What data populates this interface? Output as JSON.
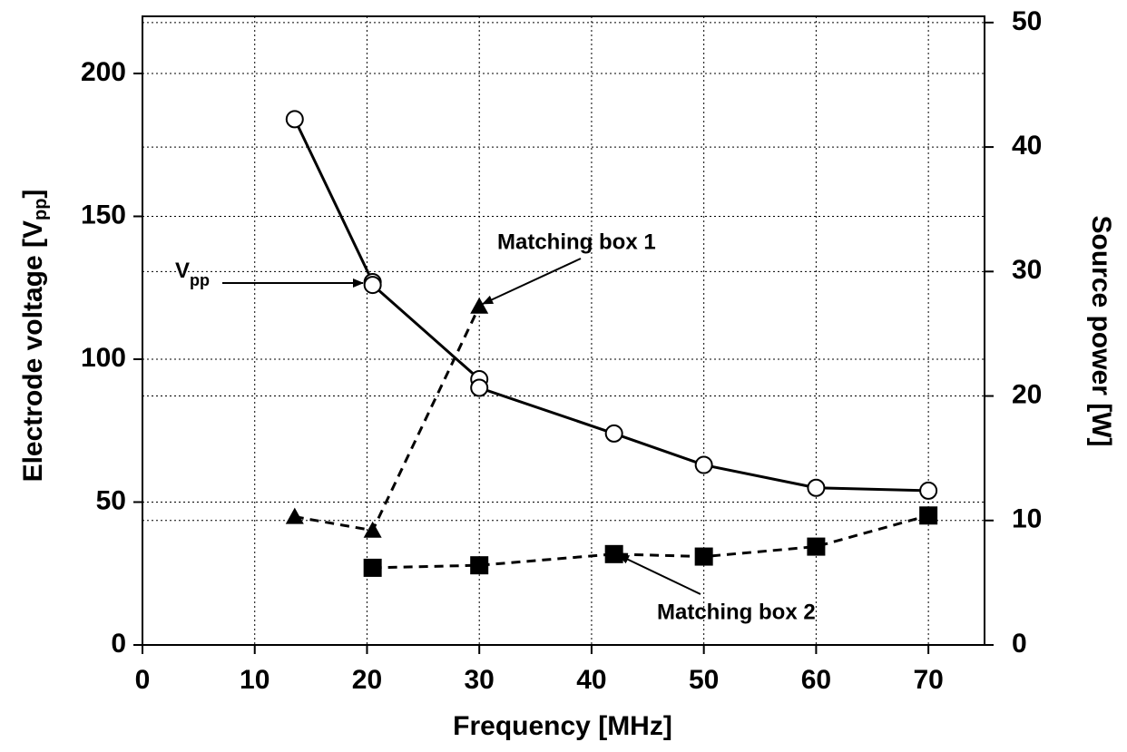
{
  "chart_data": {
    "type": "line",
    "xlabel": "Frequency  [MHz]",
    "ylabel": [
      "Electrode voltage [V",
      "pp",
      "]"
    ],
    "y2label": "Source power [W]",
    "xlim": [
      0,
      75
    ],
    "xticks": [
      0,
      10,
      20,
      30,
      40,
      50,
      60,
      70
    ],
    "ylim": [
      0,
      220
    ],
    "yticks": [
      0,
      50,
      100,
      150,
      200
    ],
    "y2lim": [
      0,
      50.5
    ],
    "y2ticks": [
      0,
      10,
      20,
      30,
      40,
      50
    ],
    "grid": true,
    "series": [
      {
        "name": "V",
        "name_sub": "pp",
        "marker": "open-circle",
        "dash": false,
        "color": "#000",
        "x": [
          13.56,
          20.5,
          20.5,
          30,
          30,
          42,
          50,
          60,
          70
        ],
        "values": [
          184,
          127,
          126,
          93,
          90,
          74,
          63,
          55,
          54
        ]
      },
      {
        "name": "Matching box 1",
        "marker": "triangle",
        "dash": true,
        "color": "#000",
        "axis": "y2",
        "x": [
          13.56,
          20.5,
          30
        ],
        "values": [
          10.3,
          9.2,
          27.2
        ]
      },
      {
        "name": "Matching box 2",
        "marker": "square",
        "dash": true,
        "color": "#000",
        "axis": "y2",
        "x": [
          20.5,
          30,
          42,
          50,
          60,
          70
        ],
        "values": [
          6.2,
          6.4,
          7.3,
          7.1,
          7.9,
          10.4
        ]
      }
    ]
  }
}
